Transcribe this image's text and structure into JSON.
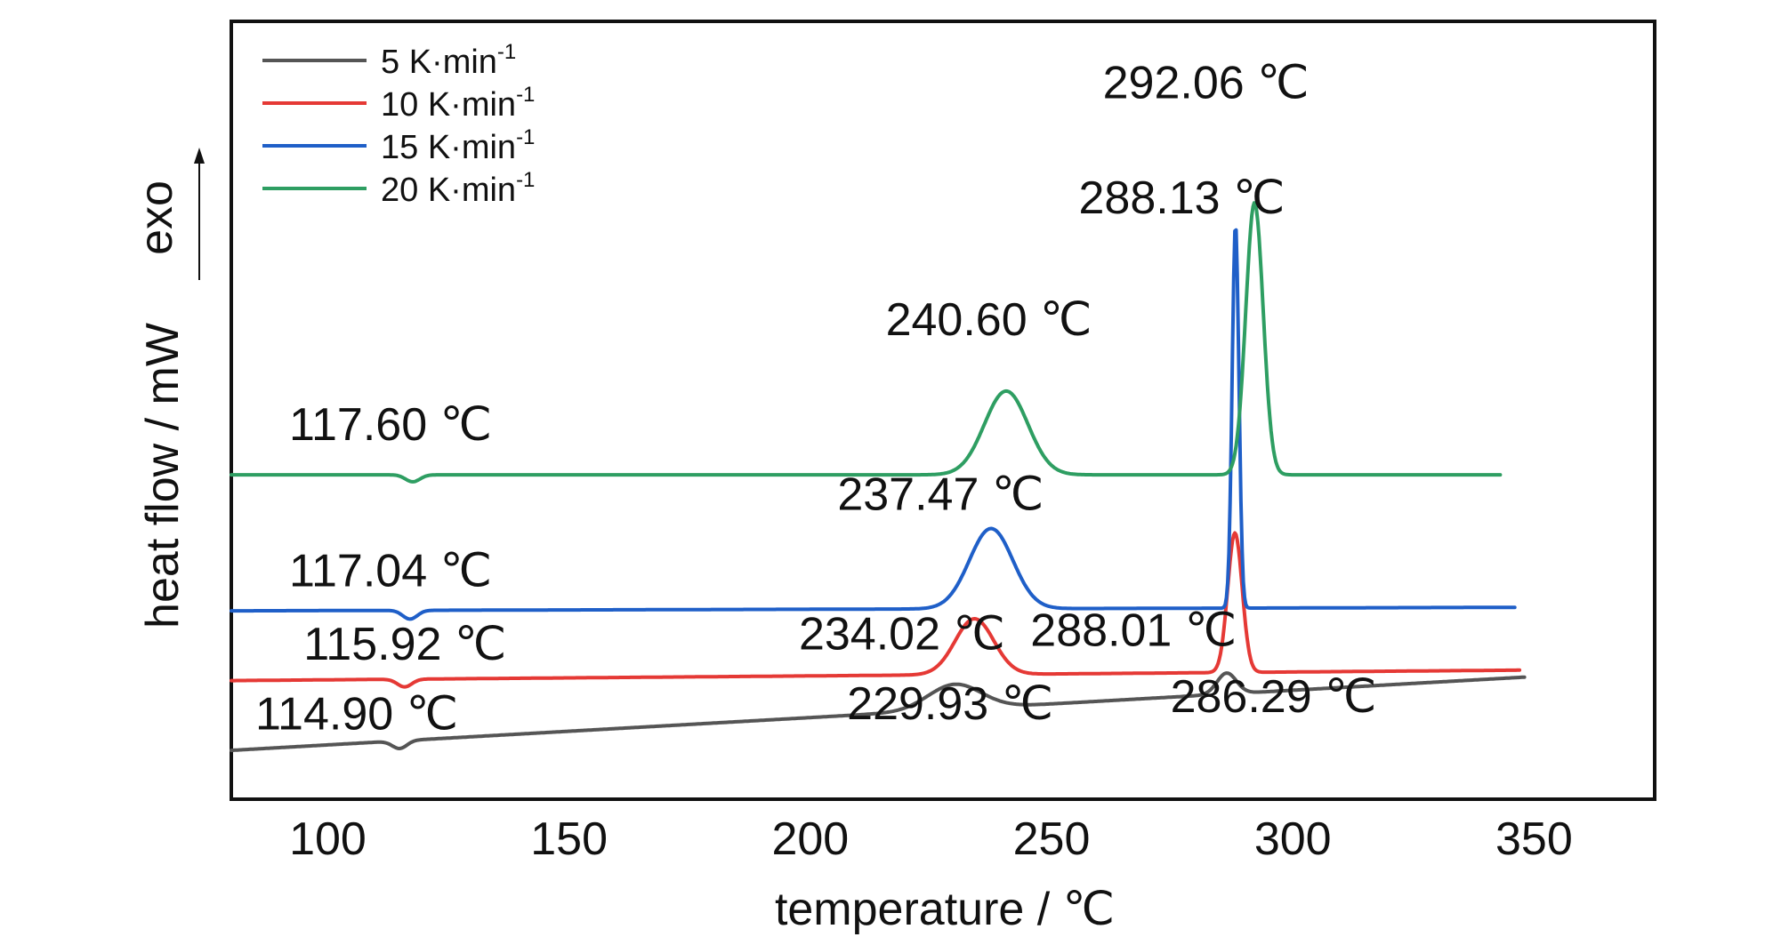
{
  "chart_data": {
    "type": "line",
    "title": "",
    "xlabel": "temperature / ℃",
    "ylabel": "heat flow / mW",
    "exo_label": "exo",
    "xlim": [
      80,
      375
    ],
    "x_ticks": [
      100,
      150,
      200,
      250,
      300,
      350
    ],
    "x_tick_labels": [
      "100",
      "150",
      "200",
      "250",
      "300",
      "350"
    ],
    "x_minor_step": 25,
    "y_ticks_shown": false,
    "grid": false,
    "legend_position": "top-left",
    "series": [
      {
        "name": "5 K·min-1",
        "name_base": "5 K·min",
        "name_sup": "-1",
        "color": "#555555",
        "x_range": [
          80,
          348
        ],
        "baseline": [
          0.6,
          2.7
        ],
        "events": [
          {
            "x": 114.9,
            "height": -0.22,
            "width": 1.5
          },
          {
            "x": 229.93,
            "height": 0.72,
            "width": 5.5
          },
          {
            "x": 286.29,
            "height": 0.6,
            "width": 2.0
          }
        ]
      },
      {
        "name": "10 K·min-1",
        "name_base": "10 K·min",
        "name_sup": "-1",
        "color": "#e53935",
        "x_range": [
          80,
          347
        ],
        "baseline": [
          2.6,
          2.9
        ],
        "events": [
          {
            "x": 115.92,
            "height": -0.22,
            "width": 1.5
          },
          {
            "x": 234.02,
            "height": 1.6,
            "width": 4.0
          },
          {
            "x": 288.01,
            "height": 4.0,
            "width": 1.5
          }
        ]
      },
      {
        "name": "15 K·min-1",
        "name_base": "15 K·min",
        "name_sup": "-1",
        "color": "#1f5fc8",
        "x_range": [
          80,
          346
        ],
        "baseline": [
          4.6,
          4.7
        ],
        "events": [
          {
            "x": 117.04,
            "height": -0.25,
            "width": 1.5
          },
          {
            "x": 237.47,
            "height": 2.3,
            "width": 4.5
          },
          {
            "x": 288.13,
            "height": 11.0,
            "width": 0.7
          }
        ]
      },
      {
        "name": "20 K·min-1",
        "name_base": "20 K·min",
        "name_sup": "-1",
        "color": "#2e9e62",
        "x_range": [
          80,
          343
        ],
        "baseline": [
          8.5,
          8.5
        ],
        "events": [
          {
            "x": 117.6,
            "height": -0.2,
            "width": 1.5
          },
          {
            "x": 240.6,
            "height": 2.4,
            "width": 4.5
          },
          {
            "x": 292.06,
            "height": 7.8,
            "width": 1.8
          }
        ]
      }
    ],
    "annotations": [
      {
        "text": "292.06 ℃",
        "x": 282,
        "y": 19.3
      },
      {
        "text": "288.13 ℃",
        "x": 277,
        "y": 16.0
      },
      {
        "text": "240.60 ℃",
        "x": 237,
        "y": 12.5
      },
      {
        "text": "117.60 ℃",
        "x": 113,
        "y": 9.5
      },
      {
        "text": "237.47 ℃",
        "x": 227,
        "y": 7.5
      },
      {
        "text": "117.04 ℃",
        "x": 113,
        "y": 5.3
      },
      {
        "text": "234.02 ℃",
        "x": 219,
        "y": 3.5
      },
      {
        "text": "288.01 ℃",
        "x": 267,
        "y": 3.6
      },
      {
        "text": "115.92 ℃",
        "x": 116,
        "y": 3.2
      },
      {
        "text": "229.93 ℃",
        "x": 229,
        "y": 1.5
      },
      {
        "text": "286.29 ℃",
        "x": 296,
        "y": 1.7
      },
      {
        "text": "114.90 ℃",
        "x": 106,
        "y": 1.2
      }
    ],
    "ylim": [
      -0.8,
      21.5
    ]
  }
}
